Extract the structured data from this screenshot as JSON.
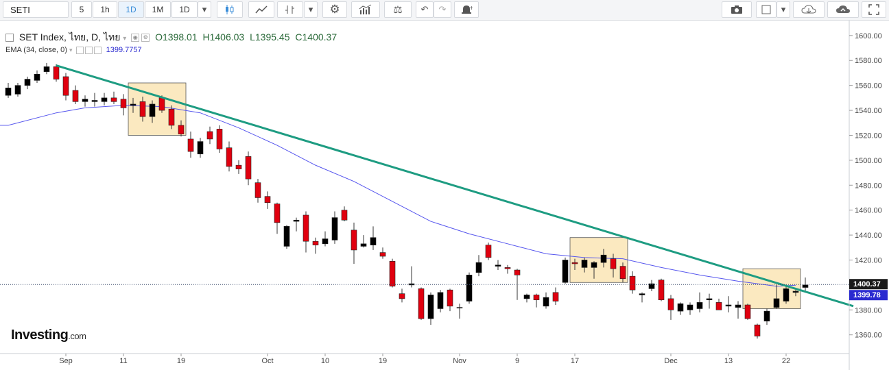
{
  "toolbar": {
    "symbol": "SETI",
    "intervals": [
      "5",
      "1h",
      "1D",
      "1M",
      "1D"
    ],
    "active_interval": "1D",
    "icons": [
      "candles-icon",
      "line-chart-icon",
      "bars-icon",
      "gear-icon",
      "indicators-icon",
      "compare-scale-icon",
      "undo-icon",
      "redo-icon",
      "alert-bell-icon",
      "camera-icon",
      "color-square-icon",
      "cloud-download-icon",
      "cloud-upload-icon",
      "fullscreen-icon"
    ]
  },
  "legend": {
    "title": "SET Index, ไทย, D, ไทย",
    "open": "O1398.01",
    "high": "H1406.03",
    "low": "L1395.45",
    "close": "C1400.37"
  },
  "ema_legend": {
    "label": "EMA (34, close, 0)",
    "value": "1399.7757"
  },
  "logo": {
    "name": "Investing",
    "suffix": ".com"
  },
  "colors": {
    "up": "#000000",
    "down": "#e0000f",
    "ema": "#5555ee",
    "trendline": "#1e9c82",
    "highlight_fill": "#fbe9c0",
    "price_tag": "#1a1a1a",
    "ema_tag": "#2a2ad0"
  },
  "chart_data": {
    "type": "candlestick",
    "title": "SET Index, ไทย, D, ไทย",
    "ylim": [
      1345,
      1612
    ],
    "yticks": [
      1360,
      1380,
      1400,
      1420,
      1440,
      1460,
      1480,
      1500,
      1520,
      1540,
      1560,
      1580,
      1600
    ],
    "ytick_labels": [
      "1360.00",
      "1380.00",
      "1400.00",
      "1420.00",
      "1440.00",
      "1460.00",
      "1480.00",
      "1500.00",
      "1520.00",
      "1540.00",
      "1560.00",
      "1580.00",
      "1600.00"
    ],
    "xtick_labels": [
      {
        "label": "Sep",
        "i": 6
      },
      {
        "label": "11",
        "i": 12
      },
      {
        "label": "19",
        "i": 18
      },
      {
        "label": "Oct",
        "i": 27
      },
      {
        "label": "10",
        "i": 33
      },
      {
        "label": "19",
        "i": 39
      },
      {
        "label": "Nov",
        "i": 47
      },
      {
        "label": "9",
        "i": 53
      },
      {
        "label": "17",
        "i": 59
      },
      {
        "label": "Dec",
        "i": 69
      },
      {
        "label": "13",
        "i": 75
      },
      {
        "label": "22",
        "i": 81
      }
    ],
    "ohlc": [
      [
        1552,
        1562,
        1550,
        1558
      ],
      [
        1553,
        1562,
        1551,
        1560
      ],
      [
        1560,
        1567,
        1557,
        1565
      ],
      [
        1564,
        1572,
        1562,
        1569
      ],
      [
        1571,
        1578,
        1569,
        1575
      ],
      [
        1575,
        1577,
        1563,
        1565
      ],
      [
        1567,
        1570,
        1548,
        1552
      ],
      [
        1556,
        1560,
        1545,
        1547
      ],
      [
        1547,
        1552,
        1543,
        1549
      ],
      [
        1547,
        1554,
        1543,
        1548
      ],
      [
        1547,
        1554,
        1544,
        1550
      ],
      [
        1550,
        1555,
        1545,
        1547
      ],
      [
        1549,
        1553,
        1536,
        1542
      ],
      [
        1544,
        1550,
        1538,
        1545
      ],
      [
        1547,
        1551,
        1531,
        1535
      ],
      [
        1535,
        1548,
        1530,
        1545
      ],
      [
        1550,
        1552,
        1538,
        1540
      ],
      [
        1541,
        1544,
        1525,
        1528
      ],
      [
        1528,
        1532,
        1519,
        1521
      ],
      [
        1517,
        1523,
        1502,
        1507
      ],
      [
        1505,
        1518,
        1502,
        1515
      ],
      [
        1523,
        1527,
        1513,
        1517
      ],
      [
        1525,
        1528,
        1506,
        1509
      ],
      [
        1510,
        1515,
        1491,
        1495
      ],
      [
        1496,
        1500,
        1489,
        1493
      ],
      [
        1503,
        1507,
        1480,
        1485
      ],
      [
        1482,
        1485,
        1466,
        1470
      ],
      [
        1471,
        1475,
        1461,
        1466
      ],
      [
        1465,
        1466,
        1441,
        1450
      ],
      [
        1431,
        1448,
        1429,
        1447
      ],
      [
        1451,
        1454,
        1443,
        1452
      ],
      [
        1456,
        1459,
        1426,
        1435
      ],
      [
        1435,
        1438,
        1425,
        1432
      ],
      [
        1433,
        1443,
        1431,
        1437
      ],
      [
        1436,
        1459,
        1433,
        1454
      ],
      [
        1460,
        1463,
        1451,
        1452
      ],
      [
        1444,
        1450,
        1417,
        1428
      ],
      [
        1431,
        1440,
        1430,
        1433
      ],
      [
        1432,
        1447,
        1428,
        1438
      ],
      [
        1426,
        1430,
        1421,
        1423
      ],
      [
        1419,
        1421,
        1398,
        1399
      ],
      [
        1393,
        1397,
        1386,
        1389
      ],
      [
        1400,
        1415,
        1398,
        1401
      ],
      [
        1397,
        1398,
        1372,
        1373
      ],
      [
        1373,
        1394,
        1368,
        1392
      ],
      [
        1381,
        1396,
        1378,
        1394
      ],
      [
        1396,
        1397,
        1379,
        1383
      ],
      [
        1382,
        1385,
        1373,
        1382
      ],
      [
        1387,
        1410,
        1385,
        1408
      ],
      [
        1410,
        1424,
        1407,
        1418
      ],
      [
        1432,
        1434,
        1420,
        1422
      ],
      [
        1415,
        1420,
        1412,
        1416
      ],
      [
        1414,
        1416,
        1409,
        1413
      ],
      [
        1412,
        1413,
        1388,
        1408
      ],
      [
        1389,
        1393,
        1386,
        1392
      ],
      [
        1392,
        1393,
        1382,
        1388
      ],
      [
        1383,
        1394,
        1381,
        1390
      ],
      [
        1394,
        1398,
        1384,
        1387
      ],
      [
        1402,
        1422,
        1401,
        1420
      ],
      [
        1418,
        1421,
        1412,
        1417
      ],
      [
        1414,
        1422,
        1410,
        1420
      ],
      [
        1414,
        1419,
        1405,
        1418
      ],
      [
        1418,
        1429,
        1414,
        1424
      ],
      [
        1421,
        1425,
        1406,
        1413
      ],
      [
        1415,
        1418,
        1402,
        1405
      ],
      [
        1407,
        1411,
        1393,
        1396
      ],
      [
        1392,
        1394,
        1386,
        1393
      ],
      [
        1397,
        1404,
        1395,
        1401
      ],
      [
        1404,
        1405,
        1387,
        1388
      ],
      [
        1389,
        1392,
        1372,
        1380
      ],
      [
        1379,
        1386,
        1376,
        1385
      ],
      [
        1380,
        1386,
        1376,
        1384
      ],
      [
        1381,
        1394,
        1378,
        1386
      ],
      [
        1388,
        1393,
        1381,
        1389
      ],
      [
        1386,
        1389,
        1380,
        1380
      ],
      [
        1383,
        1391,
        1378,
        1384
      ],
      [
        1382,
        1387,
        1373,
        1384
      ],
      [
        1384,
        1385,
        1372,
        1373
      ],
      [
        1368,
        1369,
        1357,
        1359
      ],
      [
        1371,
        1381,
        1368,
        1379
      ],
      [
        1382,
        1400,
        1381,
        1389
      ],
      [
        1387,
        1399,
        1385,
        1397
      ],
      [
        1394,
        1396,
        1391,
        1395
      ],
      [
        1398,
        1406,
        1395,
        1400
      ]
    ],
    "ema": {
      "name": "EMA (34, close, 0)",
      "points": [
        [
          0,
          1528
        ],
        [
          5,
          1538
        ],
        [
          8,
          1542
        ],
        [
          12,
          1544
        ],
        [
          16,
          1543
        ],
        [
          20,
          1538
        ],
        [
          24,
          1526
        ],
        [
          28,
          1512
        ],
        [
          32,
          1496
        ],
        [
          36,
          1483
        ],
        [
          40,
          1467
        ],
        [
          44,
          1451
        ],
        [
          48,
          1441
        ],
        [
          52,
          1433
        ],
        [
          56,
          1425
        ],
        [
          60,
          1422
        ],
        [
          64,
          1421
        ],
        [
          68,
          1414
        ],
        [
          72,
          1408
        ],
        [
          76,
          1403
        ],
        [
          80,
          1399
        ],
        [
          82,
          1399.8
        ]
      ]
    },
    "trendline": {
      "from": [
        5,
        1576
      ],
      "to": [
        88,
        1383
      ]
    },
    "highlight_boxes": [
      {
        "i0": 13,
        "i1": 18,
        "y0": 1520,
        "y1": 1562
      },
      {
        "i0": 59,
        "i1": 64,
        "y0": 1402,
        "y1": 1438
      },
      {
        "i0": 77,
        "i1": 82,
        "y0": 1381,
        "y1": 1413
      }
    ],
    "last_price": {
      "value": 1400.37,
      "label": "1400.37"
    },
    "ema_last": {
      "value": 1399.78,
      "label": "1399.78"
    }
  }
}
